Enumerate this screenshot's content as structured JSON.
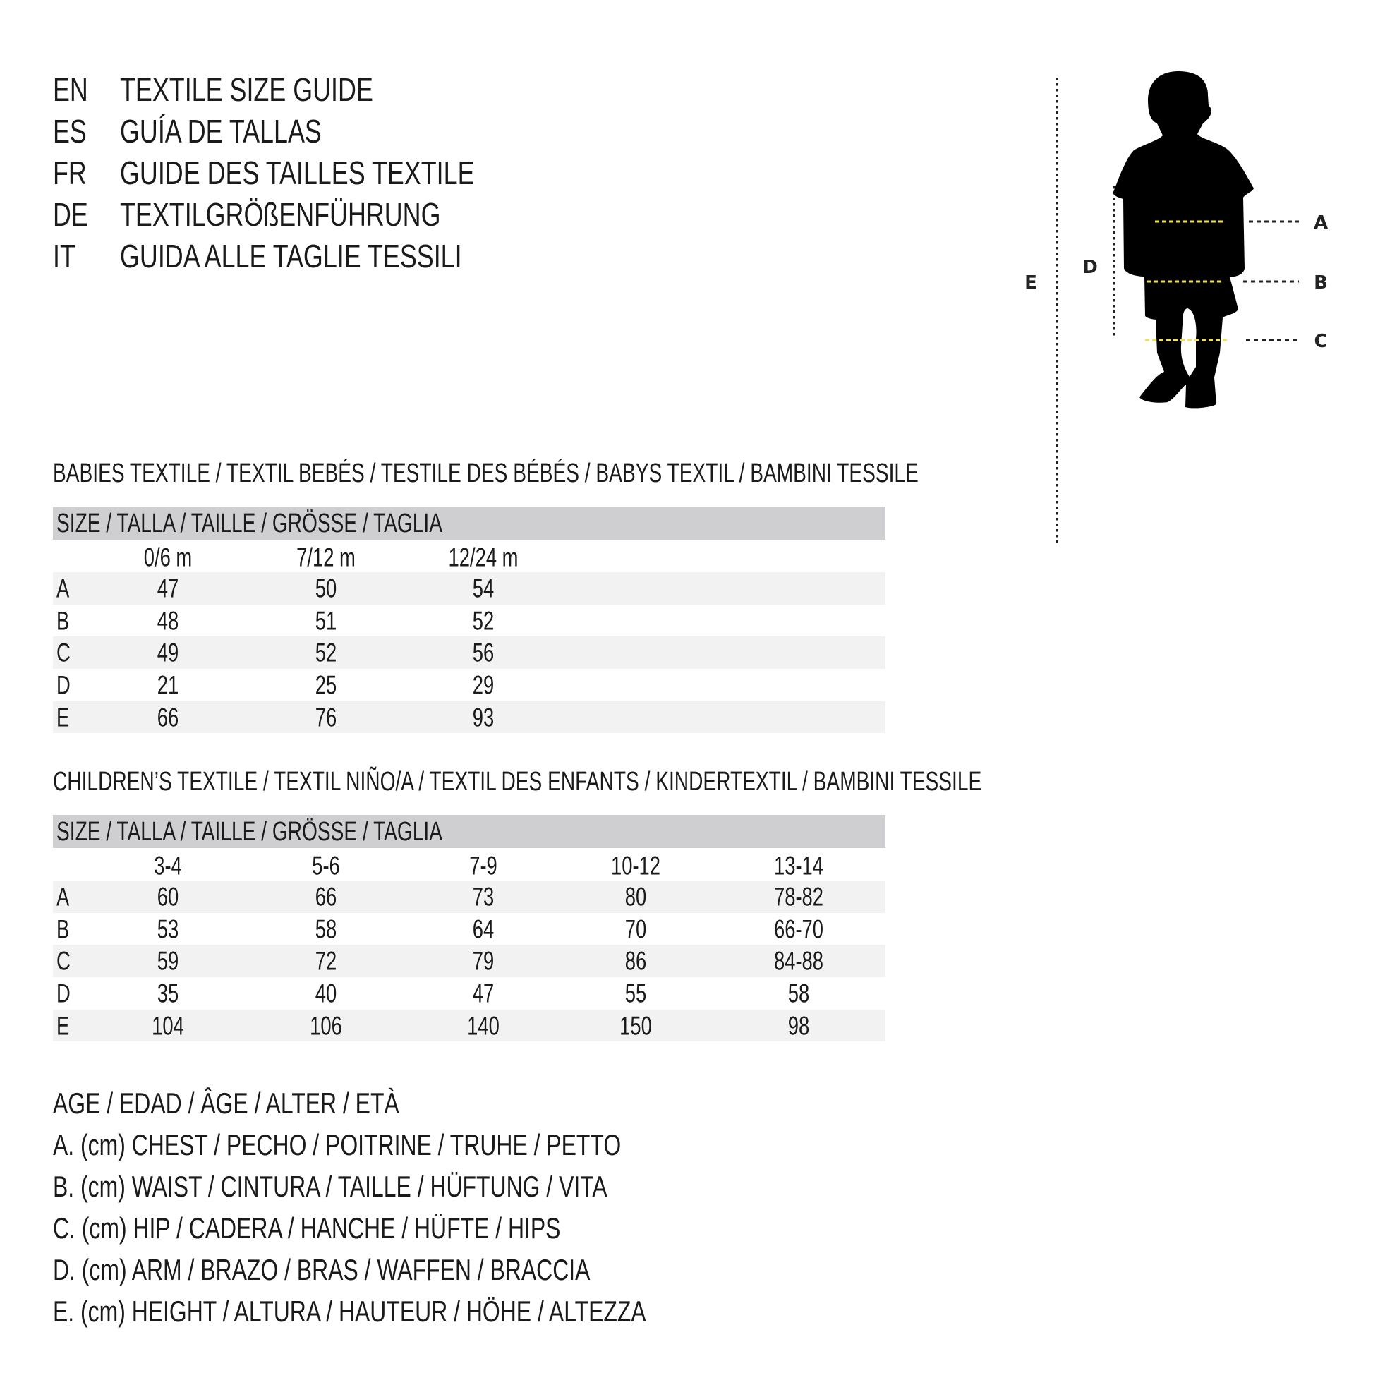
{
  "titles": [
    {
      "code": "EN",
      "text": "TEXTILE SIZE GUIDE"
    },
    {
      "code": "ES",
      "text": "GUÍA DE TALLAS"
    },
    {
      "code": "FR",
      "text": "GUIDE DES TAILLES TEXTILE"
    },
    {
      "code": "DE",
      "text": "TEXTILGRÖßENFÜHRUNG"
    },
    {
      "code": "IT",
      "text": "GUIDA ALLE TAGLIE TESSILI"
    }
  ],
  "babies": {
    "heading": "BABIES TEXTILE / TEXTIL BEBÉS / TESTILE DES BÉBÉS / BABYS TEXTIL / BAMBINI TESSILE",
    "size_label": "SIZE / TALLA / TAILLE / GRÖSSE / TAGLIA",
    "columns": [
      "0/6 m",
      "7/12 m",
      "12/24 m"
    ],
    "rows": [
      {
        "label": "A",
        "values": [
          "47",
          "50",
          "54"
        ]
      },
      {
        "label": "B",
        "values": [
          "48",
          "51",
          "52"
        ]
      },
      {
        "label": "C",
        "values": [
          "49",
          "52",
          "56"
        ]
      },
      {
        "label": "D",
        "values": [
          "21",
          "25",
          "29"
        ]
      },
      {
        "label": "E",
        "values": [
          "66",
          "76",
          "93"
        ]
      }
    ]
  },
  "children": {
    "heading": "CHILDREN’S TEXTILE / TEXTIL NIÑO/A / TEXTIL DES ENFANTS / KINDERTEXTIL / BAMBINI TESSILE",
    "size_label": "SIZE / TALLA / TAILLE / GRÖSSE / TAGLIA",
    "columns": [
      "3-4",
      "5-6",
      "7-9",
      "10-12",
      "13-14"
    ],
    "rows": [
      {
        "label": "A",
        "values": [
          "60",
          "66",
          "73",
          "80",
          "78-82"
        ]
      },
      {
        "label": "B",
        "values": [
          "53",
          "58",
          "64",
          "70",
          "66-70"
        ]
      },
      {
        "label": "C",
        "values": [
          "59",
          "72",
          "79",
          "86",
          "84-88"
        ]
      },
      {
        "label": "D",
        "values": [
          "35",
          "40",
          "47",
          "55",
          "58"
        ]
      },
      {
        "label": "E",
        "values": [
          "104",
          "106",
          "140",
          "150",
          "98"
        ]
      }
    ]
  },
  "legend": [
    "AGE / EDAD / ÂGE / ALTER / ETÀ",
    "A. (cm) CHEST / PECHO / POITRINE / TRUHE / PETTO",
    "B. (cm) WAIST / CINTURA / TAILLE / HÜFTUNG / VITA",
    "C. (cm) HIP / CADERA / HANCHE / HÜFTE / HIPS",
    "D. (cm) ARM / BRAZO / BRAS / WAFFEN / BRACCIA",
    "E. (cm) HEIGHT / ALTURA / HAUTEUR / HÖHE / ALTEZZA"
  ],
  "figure": {
    "icon": "child-silhouette-icon",
    "labels": {
      "a": "A",
      "b": "B",
      "c": "C",
      "d": "D",
      "e": "E"
    },
    "colors": {
      "silhouette": "#000000",
      "measure_line": "#f2e24a",
      "guide_line": "#222222"
    }
  }
}
